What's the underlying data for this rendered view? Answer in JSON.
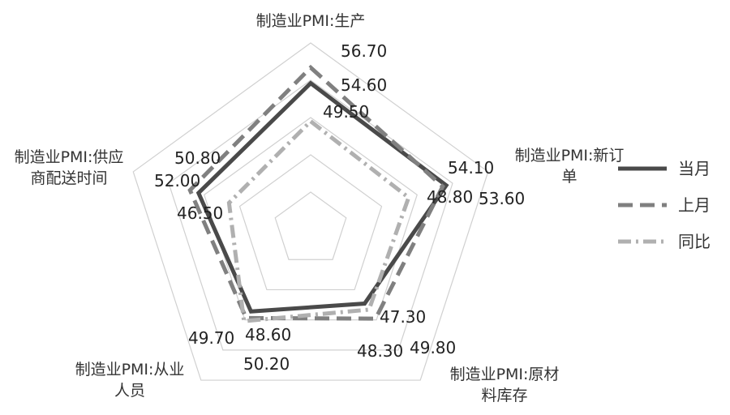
{
  "chart_data": {
    "type": "radar",
    "categories": [
      "制造业PMI:生产",
      "制造业PMI:新订单",
      "制造业PMI:原材料库存",
      "制造业PMI:从业人员",
      "制造业PMI:供应商配送时间"
    ],
    "category_lines": [
      [
        "制造业PMI:生产"
      ],
      [
        "制造业PMI:新订",
        "单"
      ],
      [
        "制造业PMI:原材",
        "料库存"
      ],
      [
        "制造业PMI:从业",
        "人员"
      ],
      [
        "制造业PMI:供应",
        "商配送时间"
      ]
    ],
    "series": [
      {
        "name": "当月",
        "values": [
          54.6,
          54.1,
          47.3,
          48.6,
          50.8
        ],
        "labels": [
          "54.60",
          "54.10",
          "47.30",
          "48.60",
          "50.80"
        ],
        "color": "#4a4a4a",
        "style": "solid"
      },
      {
        "name": "上月",
        "values": [
          56.7,
          53.6,
          49.8,
          49.7,
          52.0
        ],
        "labels": [
          "56.70",
          "53.60",
          "49.80",
          "49.70",
          "52.00"
        ],
        "color": "#808080",
        "style": "dash"
      },
      {
        "name": "同比",
        "values": [
          49.5,
          48.8,
          48.3,
          50.2,
          46.5
        ],
        "labels": [
          "49.50",
          "48.80",
          "48.30",
          "50.20",
          "46.50"
        ],
        "color": "#b0b0b0",
        "style": "dashdot"
      }
    ],
    "rlim": [
      35,
      60
    ],
    "grid": true,
    "legend": "right"
  }
}
